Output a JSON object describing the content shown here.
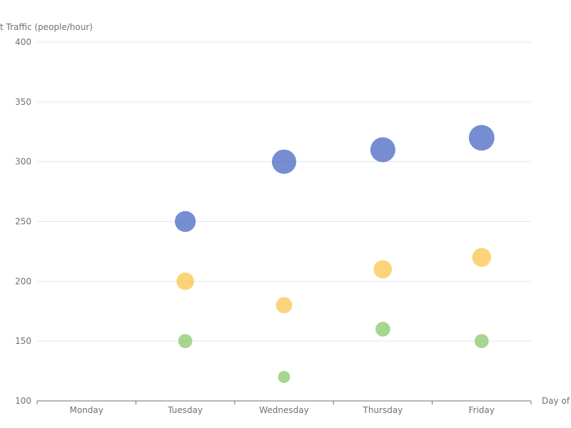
{
  "chart_data": {
    "type": "scatter",
    "x_axis": {
      "name": "Day of",
      "categories": [
        "Monday",
        "Tuesday",
        "Wednesday",
        "Thursday",
        "Friday"
      ]
    },
    "y_axis": {
      "name": "t Traffic (people/hour)",
      "min": 100,
      "max": 400,
      "ticks": [
        100,
        150,
        200,
        250,
        300,
        350,
        400
      ]
    },
    "grid": true,
    "legend": "none",
    "series": [
      {
        "color": "#5470c6",
        "points": [
          {
            "x": "Tuesday",
            "y": 250
          },
          {
            "x": "Wednesday",
            "y": 300
          },
          {
            "x": "Thursday",
            "y": 310
          },
          {
            "x": "Friday",
            "y": 320
          }
        ]
      },
      {
        "color": "#fac858",
        "points": [
          {
            "x": "Tuesday",
            "y": 200
          },
          {
            "x": "Wednesday",
            "y": 180
          },
          {
            "x": "Thursday",
            "y": 210
          },
          {
            "x": "Friday",
            "y": 220
          }
        ]
      },
      {
        "color": "#91cc75",
        "points": [
          {
            "x": "Tuesday",
            "y": 150
          },
          {
            "x": "Wednesday",
            "y": 120
          },
          {
            "x": "Thursday",
            "y": 160
          },
          {
            "x": "Friday",
            "y": 150
          }
        ]
      }
    ]
  }
}
